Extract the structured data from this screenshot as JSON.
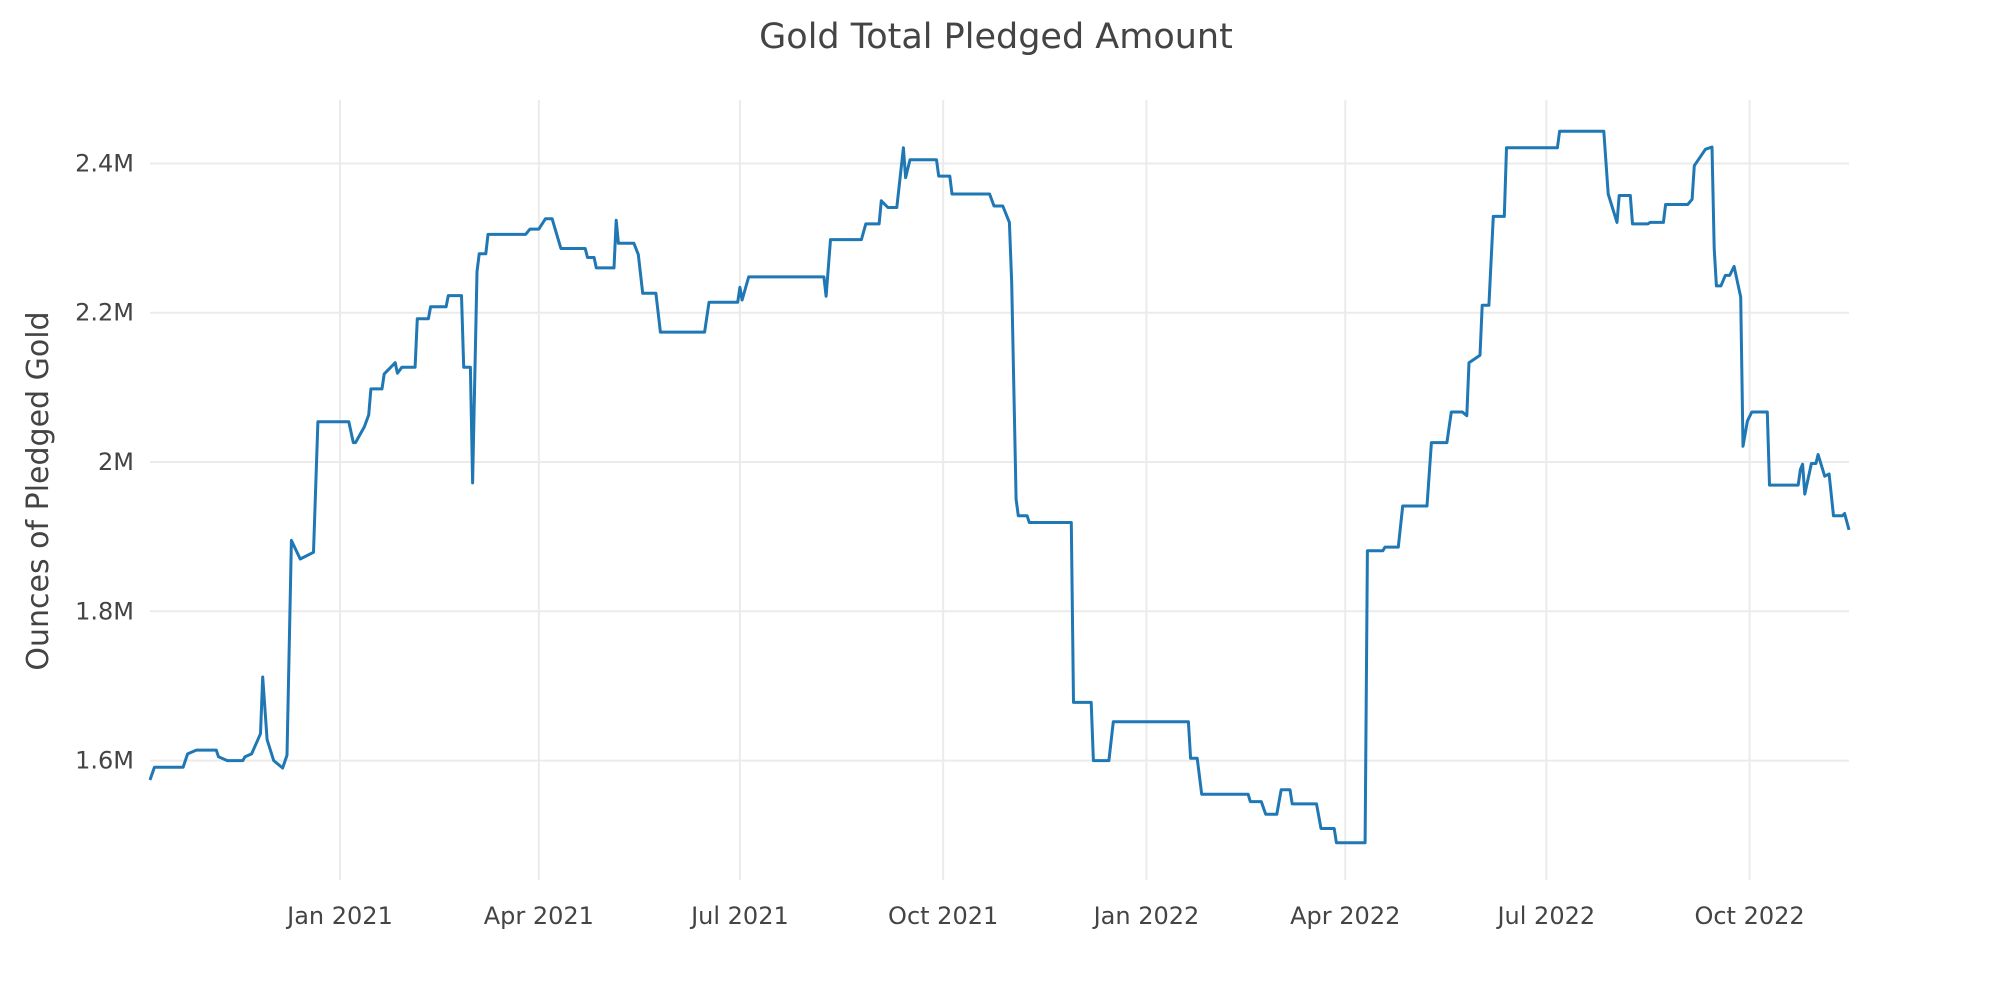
{
  "chart_data": {
    "type": "line",
    "title": "Gold Total Pledged Amount",
    "xlabel": "",
    "ylabel": "Ounces of Pledged Gold",
    "xlim": [
      "2020-10-07",
      "2022-11-15"
    ],
    "ylim": [
      1440000,
      2485000
    ],
    "grid": true,
    "legend": "none",
    "line_color": "#1f77b4",
    "x_ticks": [
      {
        "date": "2021-01-01",
        "label": "Jan 2021"
      },
      {
        "date": "2021-04-01",
        "label": "Apr 2021"
      },
      {
        "date": "2021-07-01",
        "label": "Jul 2021"
      },
      {
        "date": "2021-10-01",
        "label": "Oct 2021"
      },
      {
        "date": "2022-01-01",
        "label": "Jan 2022"
      },
      {
        "date": "2022-04-01",
        "label": "Apr 2022"
      },
      {
        "date": "2022-07-01",
        "label": "Jul 2022"
      },
      {
        "date": "2022-10-01",
        "label": "Oct 2022"
      }
    ],
    "y_ticks": [
      {
        "value": 1600000,
        "label": "1.6M"
      },
      {
        "value": 1800000,
        "label": "1.8M"
      },
      {
        "value": 2000000,
        "label": "2M"
      },
      {
        "value": 2200000,
        "label": "2.2M"
      },
      {
        "value": 2400000,
        "label": "2.4M"
      }
    ],
    "series": [
      {
        "x": [
          "2020-10-07",
          "2020-10-09",
          "2020-10-22",
          "2020-10-24",
          "2020-10-28",
          "2020-11-06",
          "2020-11-07",
          "2020-11-11",
          "2020-11-18",
          "2020-11-19",
          "2020-11-22",
          "2020-11-26",
          "2020-11-27",
          "2020-11-29",
          "2020-12-02",
          "2020-12-06",
          "2020-12-08",
          "2020-12-10",
          "2020-12-14",
          "2020-12-20",
          "2020-12-22",
          "2021-01-05",
          "2021-01-07",
          "2021-01-08",
          "2021-01-12",
          "2021-01-14",
          "2021-01-15",
          "2021-01-20",
          "2021-01-21",
          "2021-01-26",
          "2021-01-27",
          "2021-01-29",
          "2021-02-04",
          "2021-02-05",
          "2021-02-10",
          "2021-02-11",
          "2021-02-18",
          "2021-02-19",
          "2021-02-25",
          "2021-02-26",
          "2021-03-01",
          "2021-03-02",
          "2021-03-04",
          "2021-03-05",
          "2021-03-08",
          "2021-03-09",
          "2021-03-26",
          "2021-03-28",
          "2021-04-01",
          "2021-04-04",
          "2021-04-07",
          "2021-04-11",
          "2021-04-22",
          "2021-04-23",
          "2021-04-26",
          "2021-04-27",
          "2021-05-05",
          "2021-05-06",
          "2021-05-07",
          "2021-05-14",
          "2021-05-16",
          "2021-05-18",
          "2021-05-24",
          "2021-05-26",
          "2021-06-15",
          "2021-06-17",
          "2021-06-30",
          "2021-07-01",
          "2021-07-02",
          "2021-07-05",
          "2021-08-08",
          "2021-08-09",
          "2021-08-11",
          "2021-08-25",
          "2021-08-27",
          "2021-09-02",
          "2021-09-03",
          "2021-09-06",
          "2021-09-10",
          "2021-09-13",
          "2021-09-14",
          "2021-09-16",
          "2021-09-28",
          "2021-09-29",
          "2021-10-04",
          "2021-10-05",
          "2021-10-22",
          "2021-10-24",
          "2021-10-28",
          "2021-10-31",
          "2021-11-01",
          "2021-11-03",
          "2021-11-04",
          "2021-11-08",
          "2021-11-09",
          "2021-11-28",
          "2021-11-29",
          "2021-12-07",
          "2021-12-08",
          "2021-12-15",
          "2021-12-17",
          "2022-01-20",
          "2022-01-21",
          "2022-01-24",
          "2022-01-26",
          "2022-02-16",
          "2022-02-17",
          "2022-02-22",
          "2022-02-24",
          "2022-03-01",
          "2022-03-03",
          "2022-03-07",
          "2022-03-08",
          "2022-03-19",
          "2022-03-21",
          "2022-03-27",
          "2022-03-28",
          "2022-04-10",
          "2022-04-11",
          "2022-04-18",
          "2022-04-19",
          "2022-04-25",
          "2022-04-27",
          "2022-05-08",
          "2022-05-10",
          "2022-05-17",
          "2022-05-19",
          "2022-05-24",
          "2022-05-26",
          "2022-05-27",
          "2022-06-01",
          "2022-06-02",
          "2022-06-05",
          "2022-06-07",
          "2022-06-12",
          "2022-06-13",
          "2022-07-06",
          "2022-07-07",
          "2022-07-27",
          "2022-07-29",
          "2022-08-02",
          "2022-08-03",
          "2022-08-08",
          "2022-08-09",
          "2022-08-16",
          "2022-08-17",
          "2022-08-23",
          "2022-08-24",
          "2022-09-03",
          "2022-09-05",
          "2022-09-06",
          "2022-09-11",
          "2022-09-14",
          "2022-09-15",
          "2022-09-16",
          "2022-09-18",
          "2022-09-20",
          "2022-09-22",
          "2022-09-24",
          "2022-09-27",
          "2022-09-28",
          "2022-09-30",
          "2022-10-02",
          "2022-10-09",
          "2022-10-10",
          "2022-10-23",
          "2022-10-24",
          "2022-10-25",
          "2022-10-26",
          "2022-10-29",
          "2022-10-31",
          "2022-11-01",
          "2022-11-04",
          "2022-11-06",
          "2022-11-08",
          "2022-11-12",
          "2022-11-13",
          "2022-11-15"
        ],
        "y": [
          1574000,
          1591000,
          1591000,
          1609000,
          1614000,
          1614000,
          1605000,
          1600000,
          1600000,
          1605000,
          1609000,
          1636000,
          1712000,
          1628000,
          1600000,
          1590000,
          1607000,
          1895000,
          1870000,
          1879000,
          2054000,
          2054000,
          2026000,
          2026000,
          2047000,
          2063000,
          2098000,
          2098000,
          2118000,
          2133000,
          2119000,
          2127000,
          2127000,
          2192000,
          2192000,
          2208000,
          2208000,
          2223000,
          2223000,
          2127000,
          2127000,
          1972000,
          2255000,
          2279000,
          2279000,
          2305000,
          2305000,
          2312000,
          2312000,
          2326000,
          2326000,
          2286000,
          2286000,
          2274000,
          2274000,
          2260000,
          2260000,
          2324000,
          2293000,
          2293000,
          2278000,
          2226000,
          2226000,
          2174000,
          2174000,
          2214000,
          2214000,
          2234000,
          2217000,
          2248000,
          2248000,
          2222000,
          2298000,
          2298000,
          2319000,
          2319000,
          2350000,
          2341000,
          2341000,
          2421000,
          2381000,
          2405000,
          2405000,
          2383000,
          2383000,
          2359000,
          2359000,
          2343000,
          2343000,
          2321000,
          2240000,
          1950000,
          1928000,
          1928000,
          1919000,
          1919000,
          1678000,
          1678000,
          1600000,
          1600000,
          1652000,
          1652000,
          1603000,
          1603000,
          1555000,
          1555000,
          1545000,
          1545000,
          1528000,
          1528000,
          1561000,
          1561000,
          1542000,
          1542000,
          1509000,
          1509000,
          1490000,
          1490000,
          1881000,
          1881000,
          1886000,
          1886000,
          1941000,
          1941000,
          2026000,
          2026000,
          2067000,
          2067000,
          2062000,
          2133000,
          2143000,
          2210000,
          2210000,
          2329000,
          2329000,
          2421000,
          2421000,
          2443000,
          2443000,
          2359000,
          2321000,
          2357000,
          2357000,
          2319000,
          2319000,
          2321000,
          2321000,
          2345000,
          2345000,
          2352000,
          2397000,
          2419000,
          2422000,
          2286000,
          2236000,
          2236000,
          2250000,
          2250000,
          2262000,
          2221000,
          2021000,
          2055000,
          2067000,
          2067000,
          1969000,
          1969000,
          1990000,
          1997000,
          1957000,
          1998000,
          1998000,
          2010000,
          1981000,
          1984000,
          1928000,
          1928000,
          1931000,
          1909000
        ]
      }
    ]
  }
}
